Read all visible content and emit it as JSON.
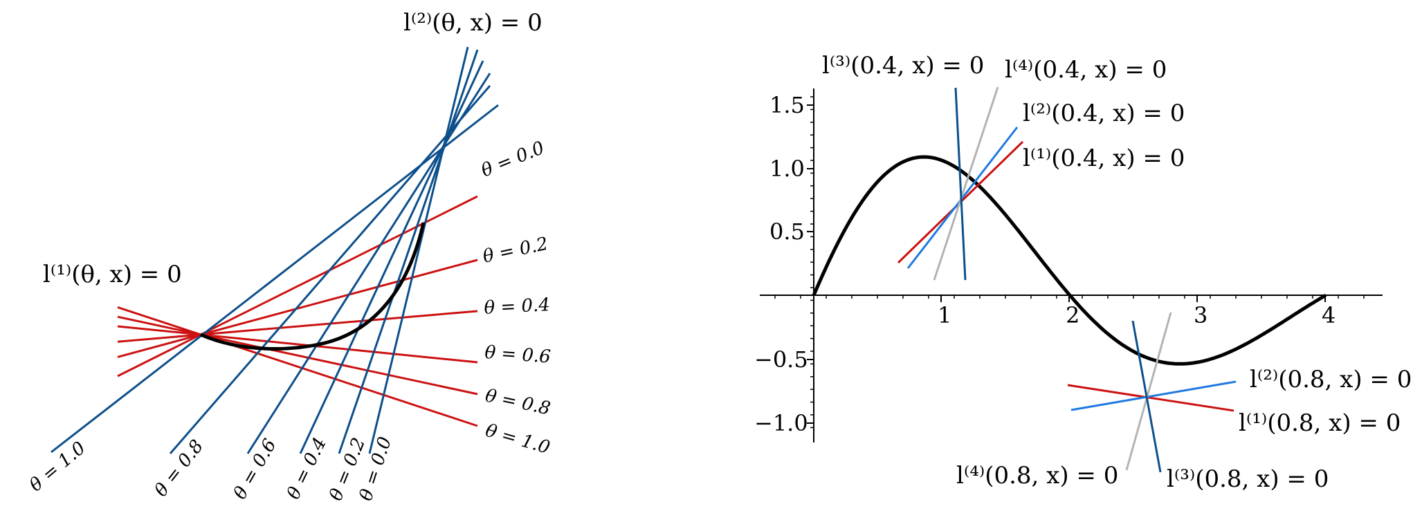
{
  "colors": {
    "blue": "#0d4f8b",
    "red": "#cc1111",
    "light_blue": "#1f7ae0",
    "gray": "#b3b3b3",
    "curve": "#000000"
  },
  "left_panel": {
    "labels": {
      "l1": "l⁽¹⁾(θ, x) = 0",
      "l2": "l⁽²⁾(θ, x) = 0"
    },
    "theta_values": [
      0.0,
      0.2,
      0.4,
      0.6,
      0.8,
      1.0
    ],
    "red_labels": [
      "θ = 0.0",
      "θ = 0.2",
      "θ = 0.4",
      "θ = 0.6",
      "θ = 0.8",
      "θ = 1.0"
    ],
    "blue_labels": [
      "θ = 1.0",
      "θ = 0.8",
      "θ = 0.6",
      "θ = 0.4",
      "θ = 0.2",
      "θ = 0.0"
    ]
  },
  "right_panel": {
    "x_ticks": [
      "1",
      "2",
      "3",
      "4"
    ],
    "y_ticks": [
      "1.5",
      "1.0",
      "0.5",
      "−0.5",
      "−1.0"
    ],
    "labels_04": [
      "l⁽³⁾(0.4, x) = 0",
      "l⁽⁴⁾(0.4, x) = 0",
      "l⁽²⁾(0.4, x) = 0",
      "l⁽¹⁾(0.4, x) = 0"
    ],
    "labels_08": [
      "l⁽²⁾(0.8, x) = 0",
      "l⁽¹⁾(0.8, x) = 0",
      "l⁽⁴⁾(0.8, x) = 0",
      "l⁽³⁾(0.8, x) = 0"
    ]
  }
}
